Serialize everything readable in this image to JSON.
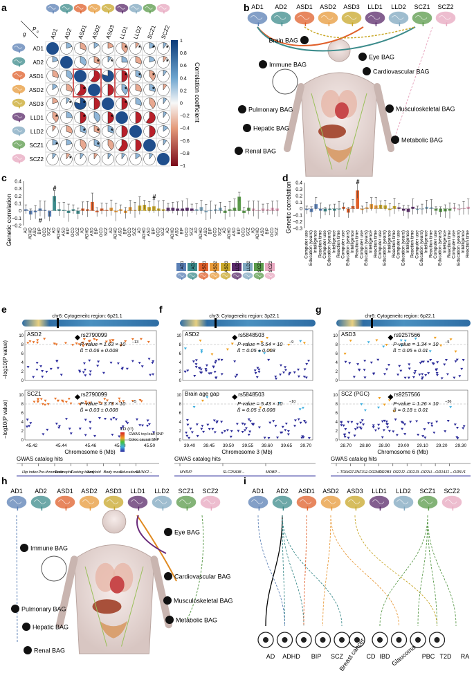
{
  "panels": {
    "a": {
      "letter": "a",
      "labels": [
        "AD1",
        "AD2",
        "ASD1",
        "ASD2",
        "ASD3",
        "LLD1",
        "LLD2",
        "SCZ1",
        "SCZ2"
      ],
      "corner_top": "P",
      "corner_sub": "c",
      "corner_g": "g",
      "colorbar_title": "Correlation coefficient",
      "colorbar_ticks": [
        "1",
        "0.8",
        "0.6",
        "0.4",
        "0.2",
        "0",
        "−0.2",
        "−0.4",
        "−0.6",
        "−0.8",
        "−1"
      ],
      "star": "*"
    },
    "b": {
      "letter": "b",
      "subtypes": [
        "AD1",
        "AD2",
        "ASD1",
        "ASD2",
        "ASD3",
        "LLD1",
        "LLD2",
        "SCZ1",
        "SCZ2"
      ],
      "organs": [
        "Brain BAG",
        "Eye BAG",
        "Immune BAG",
        "Cardiovascular BAG",
        "Pulmonary BAG",
        "Musculoskeletal BAG",
        "Hepatic BAG",
        "Metabolic BAG",
        "Renal BAG"
      ]
    },
    "c": {
      "letter": "c",
      "ylabel": "Genetic correlation",
      "yticks": [
        "0.4",
        "0.3",
        "0.2",
        "0.1",
        "0",
        "−0.1",
        "−0.2"
      ],
      "xlabels": [
        "AD",
        "ADHD",
        "ASD",
        "BIP",
        "OCD",
        "SCZ",
        "AD",
        "ADHD",
        "ASD",
        "BIP",
        "OCD",
        "SCZ",
        "AD",
        "ADHD",
        "ASD",
        "BIP",
        "OCD",
        "SCZ",
        "AD",
        "ADHD",
        "ASD",
        "BIP",
        "OCD",
        "SCZ",
        "AD",
        "ADHD",
        "ASD",
        "BIP",
        "OCD",
        "SCZ",
        "AD",
        "ADHD",
        "ASD",
        "BIP",
        "OCD",
        "SCZ",
        "AD",
        "ADHD",
        "ASD",
        "BIP",
        "OCD",
        "SCZ",
        "AD",
        "ADHD",
        "ASD",
        "BIP",
        "OCD",
        "SCZ",
        "AD",
        "ADHD",
        "ASD",
        "BIP",
        "OCD",
        "SCZ"
      ],
      "legend": [
        "AD1",
        "AD2",
        "ASD1",
        "ASD2",
        "ASD3",
        "LLD1",
        "LLD2",
        "SCZ1",
        "SCZ2"
      ],
      "mark": "#"
    },
    "d": {
      "letter": "d",
      "ylabel": "Genetic correlation",
      "yticks": [
        "0.4",
        "0.3",
        "0.2",
        "0.1",
        "0",
        "−0.1",
        "−0.2",
        "−0.3"
      ],
      "xlabels": [
        "Computer use",
        "Education (years)",
        "Intelligence",
        "Reaction time",
        "Computer use",
        "Education (years)",
        "Intelligence",
        "Reaction time",
        "Computer use",
        "Education (years)",
        "Intelligence",
        "Reaction time",
        "Computer use",
        "Education (years)",
        "Intelligence",
        "Reaction time",
        "Computer use",
        "Education (years)",
        "Intelligence",
        "Reaction time",
        "Computer use",
        "Education (years)",
        "Intelligence",
        "Reaction time",
        "Computer use",
        "Education (years)",
        "Intelligence",
        "Reaction time",
        "Computer use",
        "Education (years)",
        "Intelligence",
        "Reaction time",
        "Computer use",
        "Education (years)",
        "Intelligence",
        "Reaction time"
      ],
      "mark": "#"
    },
    "e": {
      "letter": "e",
      "region": "chr6: Cytogeneitc region: 6p21.1",
      "top": {
        "trait": "ASD2",
        "snp": "rs2790099",
        "p": "P-value = 1.63 × 10",
        "p_exp": "−13",
        "beta": "ß = 0.06 ± 0.008"
      },
      "bottom": {
        "trait": "SCZ1",
        "snp": "rs2790099",
        "p": "P-value = 3.78 × 10",
        "p_exp": "−5",
        "beta": "ß = 0.03 ± 0.008"
      },
      "xlabel": "Chromosome 6 (Mb)",
      "xticks": [
        "45.42",
        "45.44",
        "45.46",
        "45.48",
        "45.50"
      ],
      "ylabel": "−log10(P value)",
      "ld_title": "LD (r²)",
      "ld_ticks": [
        "0.8",
        "0.6",
        "0.4",
        "0.2"
      ],
      "legend_lead": "GWAS top lead SNP",
      "legend_coloc": "Coloc causal SNP",
      "gwas_title": "GWAS catalog hits",
      "genes": [
        "Hip index",
        "Pro-thrombotic",
        "Eosinophil",
        "Fasting blood",
        "Amyloid",
        "Body mass",
        "Educational",
        "RUNX2→"
      ]
    },
    "f": {
      "letter": "f",
      "region": "chr3: Cytogeneitc region: 3p22.1",
      "top": {
        "trait": "ASD2",
        "snp": "rs5848503",
        "p": "P-value = 5.54 × 10",
        "p_exp": "−9",
        "beta": "ß = 0.05 ± 0.008"
      },
      "bottom": {
        "trait": "Brain age gap",
        "snp": "rs5848503",
        "p": "P-value = 5.43 × 10",
        "p_exp": "−10",
        "beta": "ß = 0.05 ± 0.008"
      },
      "xlabel": "Chromosome 3 (Mb)",
      "xticks": [
        "39.40",
        "39.45",
        "39.50",
        "39.55",
        "39.60",
        "39.65",
        "39.70"
      ],
      "gwas_title": "GWAS catalog hits",
      "genes": [
        "MYRIP",
        "SLC25A38→",
        "MOBP→"
      ]
    },
    "g": {
      "letter": "g",
      "region": "chr6: Cytogeneitc region: 6p22.1",
      "top": {
        "trait": "ASD3",
        "snp": "rs9257566",
        "p": "P-value = 1.34 × 10",
        "p_exp": "−5",
        "beta": "ß = 0.05 ± 0.01"
      },
      "bottom": {
        "trait": "SCZ (PGC)",
        "snp": "rs9257566",
        "p": "P-value = 1.26 × 10",
        "p_exp": "−36",
        "beta": "ß = 0.18 ± 0.01"
      },
      "xlabel": "Chromosome 6 (Mb)",
      "xticks": [
        "28.70",
        "28.80",
        "28.90",
        "29.00",
        "29.10",
        "29.20",
        "29.30"
      ],
      "gwas_title": "GWAS catalog hits",
      "genes": [
        "←TRIM27",
        "←ZNF311",
        "←OR2W1",
        "OR2B3",
        "OR2J2→",
        "OR2J3→",
        "OR2H→",
        "OR14J1→",
        "←OR5V1"
      ]
    },
    "h": {
      "letter": "h",
      "subtypes": [
        "AD1",
        "AD2",
        "ASD1",
        "ASD2",
        "ASD3",
        "LLD1",
        "LLD2",
        "SCZ1",
        "SCZ2"
      ],
      "organs": [
        "Eye BAG",
        "Immune BAG",
        "Cardiovascular BAG",
        "Pulmonary BAG",
        "Musculoskeletal BAG",
        "Hepatic BAG",
        "Metabolic BAG",
        "Renal BAG"
      ]
    },
    "i": {
      "letter": "i",
      "subtypes": [
        "AD1",
        "AD2",
        "ASD1",
        "ASD2",
        "ASD3",
        "LLD1",
        "LLD2",
        "SCZ1",
        "SCZ2"
      ],
      "diseases": [
        "AD",
        "ADHD",
        "BIP",
        "SCZ",
        "Breast cancer",
        "CD",
        "IBD",
        "Glaucoma",
        "PBC",
        "T2D",
        "RA"
      ]
    }
  },
  "colors": {
    "AD1": "#5a7fb5",
    "AD2": "#3d8c8c",
    "ASD1": "#e0602a",
    "ASD2": "#e89a3a",
    "ASD3": "#c9a82a",
    "LLD1": "#5a2a6a",
    "LLD2": "#7fa8c0",
    "SCZ1": "#5a9a4a",
    "SCZ2": "#e8a8c0",
    "pos": "#1f4e8c",
    "neg": "#b8202a"
  }
}
